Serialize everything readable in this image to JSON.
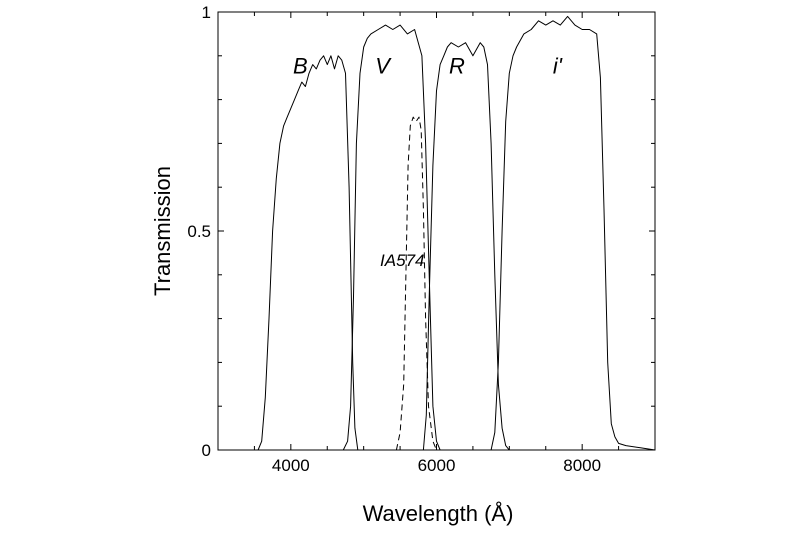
{
  "chart_data": {
    "type": "line",
    "title": "",
    "xlabel": "Wavelength  (Å)",
    "ylabel": "Transmission",
    "xlim": [
      3000,
      9000
    ],
    "ylim": [
      0,
      1
    ],
    "xticks": [
      4000,
      6000,
      8000
    ],
    "xtick_labels": [
      "4000",
      "6000",
      "8000"
    ],
    "yticks": [
      0,
      0.5,
      1
    ],
    "ytick_labels": [
      "0",
      "0.5",
      "1"
    ],
    "grid": false,
    "legend": "none",
    "series": [
      {
        "name": "B",
        "label_at": [
          4130,
          0.86
        ],
        "dashed": false,
        "x": [
          3550,
          3600,
          3650,
          3700,
          3750,
          3800,
          3850,
          3900,
          3950,
          4000,
          4050,
          4100,
          4150,
          4200,
          4250,
          4300,
          4350,
          4400,
          4450,
          4500,
          4550,
          4600,
          4650,
          4700,
          4750,
          4800,
          4850,
          4880,
          4920
        ],
        "y": [
          0.0,
          0.02,
          0.12,
          0.3,
          0.5,
          0.62,
          0.7,
          0.74,
          0.76,
          0.78,
          0.8,
          0.82,
          0.84,
          0.83,
          0.86,
          0.88,
          0.87,
          0.89,
          0.9,
          0.88,
          0.9,
          0.87,
          0.9,
          0.89,
          0.86,
          0.6,
          0.2,
          0.05,
          0.0
        ]
      },
      {
        "name": "V",
        "label_at": [
          5260,
          0.86
        ],
        "dashed": false,
        "x": [
          4720,
          4780,
          4820,
          4860,
          4900,
          4950,
          5000,
          5050,
          5100,
          5200,
          5300,
          5400,
          5500,
          5600,
          5700,
          5800,
          5850,
          5900,
          5950,
          6000,
          6050
        ],
        "y": [
          0.0,
          0.02,
          0.1,
          0.35,
          0.7,
          0.86,
          0.92,
          0.94,
          0.95,
          0.96,
          0.97,
          0.96,
          0.97,
          0.95,
          0.96,
          0.9,
          0.7,
          0.4,
          0.1,
          0.02,
          0.0
        ]
      },
      {
        "name": "IA574",
        "label_at": [
          5530,
          0.42
        ],
        "dashed": true,
        "x": [
          5450,
          5500,
          5550,
          5580,
          5610,
          5640,
          5680,
          5720,
          5760,
          5790,
          5820,
          5850,
          5890,
          5950,
          6000
        ],
        "y": [
          0.0,
          0.04,
          0.15,
          0.4,
          0.65,
          0.74,
          0.76,
          0.75,
          0.76,
          0.73,
          0.55,
          0.3,
          0.1,
          0.02,
          0.0
        ]
      },
      {
        "name": "R",
        "label_at": [
          6280,
          0.86
        ],
        "dashed": false,
        "x": [
          5820,
          5860,
          5900,
          5950,
          6000,
          6050,
          6100,
          6150,
          6200,
          6300,
          6400,
          6500,
          6600,
          6650,
          6700,
          6750,
          6800,
          6850,
          6900,
          6950,
          7000
        ],
        "y": [
          0.0,
          0.08,
          0.35,
          0.65,
          0.82,
          0.88,
          0.9,
          0.92,
          0.93,
          0.92,
          0.93,
          0.9,
          0.93,
          0.92,
          0.88,
          0.7,
          0.4,
          0.15,
          0.05,
          0.01,
          0.0
        ]
      },
      {
        "name": "i'",
        "label_at": [
          7660,
          0.86
        ],
        "dashed": false,
        "x": [
          6750,
          6800,
          6850,
          6900,
          6950,
          7000,
          7050,
          7100,
          7200,
          7300,
          7400,
          7500,
          7600,
          7700,
          7800,
          7900,
          8000,
          8100,
          8200,
          8250,
          8300,
          8350,
          8400,
          8450,
          8500,
          8600,
          8800,
          9000
        ],
        "y": [
          0.0,
          0.04,
          0.2,
          0.5,
          0.75,
          0.86,
          0.9,
          0.92,
          0.95,
          0.96,
          0.98,
          0.97,
          0.98,
          0.97,
          0.99,
          0.97,
          0.96,
          0.96,
          0.95,
          0.85,
          0.55,
          0.2,
          0.06,
          0.03,
          0.015,
          0.01,
          0.005,
          0.0
        ]
      }
    ]
  }
}
